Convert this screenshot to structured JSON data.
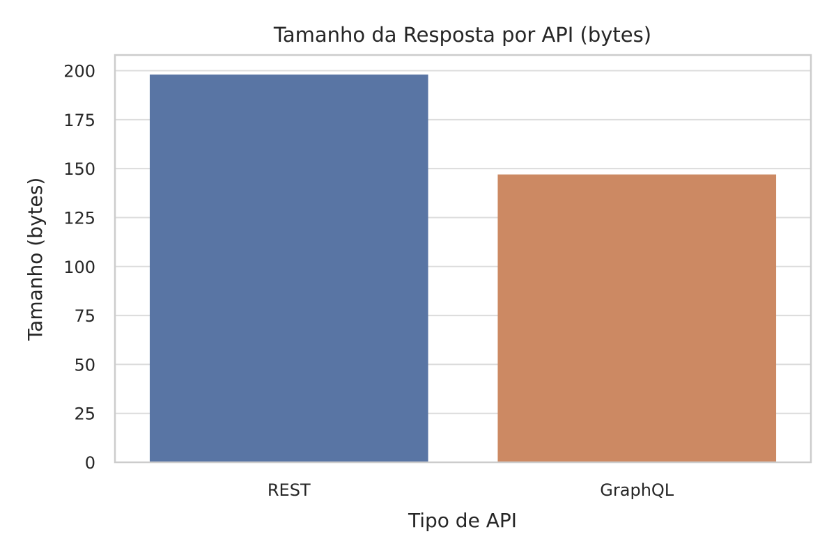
{
  "chart_data": {
    "type": "bar",
    "title": "Tamanho da Resposta por API (bytes)",
    "xlabel": "Tipo de API",
    "ylabel": "Tamanho (bytes)",
    "categories": [
      "REST",
      "GraphQL"
    ],
    "values": [
      198,
      147
    ],
    "colors": [
      "#5975a4",
      "#cc8963"
    ],
    "ylim": [
      0,
      208
    ],
    "yticks": [
      0,
      25,
      50,
      75,
      100,
      125,
      150,
      175,
      200
    ],
    "grid": true,
    "legend": "none"
  }
}
